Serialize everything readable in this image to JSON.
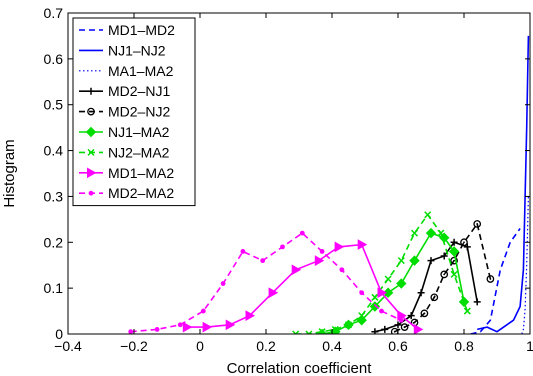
{
  "chart_data": {
    "type": "line",
    "xlabel": "Correlation coefficient",
    "ylabel": "Histogram",
    "xlim": [
      -0.4,
      1.0
    ],
    "ylim": [
      0,
      0.7
    ],
    "xticks": [
      "-0.4",
      "-0.2",
      "0",
      "0.2",
      "0.4",
      "0.6",
      "0.8",
      "1"
    ],
    "yticks": [
      "0",
      "0.1",
      "0.2",
      "0.3",
      "0.4",
      "0.5",
      "0.6",
      "0.7"
    ],
    "grid": false,
    "legend_position": "top-left",
    "series": [
      {
        "name": "MD1–MD2",
        "color": "#0000ff",
        "dash": "dashed",
        "marker": "none",
        "x": [
          0.82,
          0.85,
          0.88,
          0.91,
          0.94,
          0.97
        ],
        "y": [
          0.0,
          0.005,
          0.03,
          0.14,
          0.2,
          0.23
        ]
      },
      {
        "name": "NJ1–NJ2",
        "color": "#0000ff",
        "dash": "solid",
        "marker": "none",
        "x": [
          0.84,
          0.87,
          0.9,
          0.93,
          0.95,
          0.97,
          0.98,
          0.99,
          0.995
        ],
        "y": [
          0.01,
          0.015,
          0.005,
          0.02,
          0.03,
          0.06,
          0.14,
          0.45,
          0.65
        ]
      },
      {
        "name": "MA1–MA2",
        "color": "#0000ff",
        "dash": "dotted",
        "marker": "none",
        "x": [
          0.975,
          0.98,
          0.985,
          0.99,
          0.995
        ],
        "y": [
          0.0,
          0.01,
          0.05,
          0.15,
          0.3
        ]
      },
      {
        "name": "MD2–NJ1",
        "color": "#000000",
        "dash": "solid",
        "marker": "plus",
        "x": [
          0.53,
          0.56,
          0.6,
          0.64,
          0.67,
          0.7,
          0.74,
          0.77,
          0.81,
          0.84
        ],
        "y": [
          0.005,
          0.01,
          0.02,
          0.04,
          0.09,
          0.16,
          0.17,
          0.2,
          0.19,
          0.07
        ]
      },
      {
        "name": "MD2–NJ2",
        "color": "#000000",
        "dash": "dashed",
        "marker": "circle",
        "x": [
          0.59,
          0.62,
          0.65,
          0.68,
          0.71,
          0.74,
          0.77,
          0.8,
          0.84,
          0.88
        ],
        "y": [
          0.005,
          0.015,
          0.025,
          0.045,
          0.08,
          0.13,
          0.16,
          0.2,
          0.24,
          0.12
        ]
      },
      {
        "name": "NJ1–MA2",
        "color": "#00dd00",
        "dash": "solid",
        "marker": "diamond",
        "x": [
          0.37,
          0.41,
          0.45,
          0.49,
          0.53,
          0.57,
          0.61,
          0.65,
          0.7,
          0.74,
          0.77,
          0.8
        ],
        "y": [
          0.0,
          0.005,
          0.02,
          0.03,
          0.06,
          0.09,
          0.11,
          0.16,
          0.22,
          0.21,
          0.18,
          0.07
        ]
      },
      {
        "name": "NJ2–MA2",
        "color": "#00dd00",
        "dash": "dashed",
        "marker": "x",
        "x": [
          0.29,
          0.33,
          0.37,
          0.41,
          0.45,
          0.49,
          0.53,
          0.57,
          0.61,
          0.65,
          0.69,
          0.73,
          0.77,
          0.81
        ],
        "y": [
          0.0,
          0.0,
          0.005,
          0.01,
          0.02,
          0.04,
          0.08,
          0.12,
          0.16,
          0.22,
          0.26,
          0.22,
          0.13,
          0.05
        ]
      },
      {
        "name": "MD1–MA2",
        "color": "#ff00ff",
        "dash": "solid",
        "marker": "triangle-right",
        "x": [
          -0.04,
          0.02,
          0.09,
          0.15,
          0.22,
          0.29,
          0.36,
          0.42,
          0.49,
          0.55,
          0.61,
          0.66
        ],
        "y": [
          0.015,
          0.015,
          0.02,
          0.04,
          0.09,
          0.14,
          0.16,
          0.19,
          0.195,
          0.09,
          0.04,
          0.01
        ]
      },
      {
        "name": "MD2–MA2",
        "color": "#ff00ff",
        "dash": "dashed",
        "marker": "dot",
        "x": [
          -0.21,
          -0.13,
          -0.06,
          0.01,
          0.07,
          0.13,
          0.19,
          0.25,
          0.31,
          0.37,
          0.43,
          0.49,
          0.55,
          0.61
        ],
        "y": [
          0.005,
          0.01,
          0.02,
          0.05,
          0.11,
          0.18,
          0.16,
          0.19,
          0.22,
          0.18,
          0.14,
          0.09,
          0.05,
          0.03
        ]
      }
    ]
  }
}
